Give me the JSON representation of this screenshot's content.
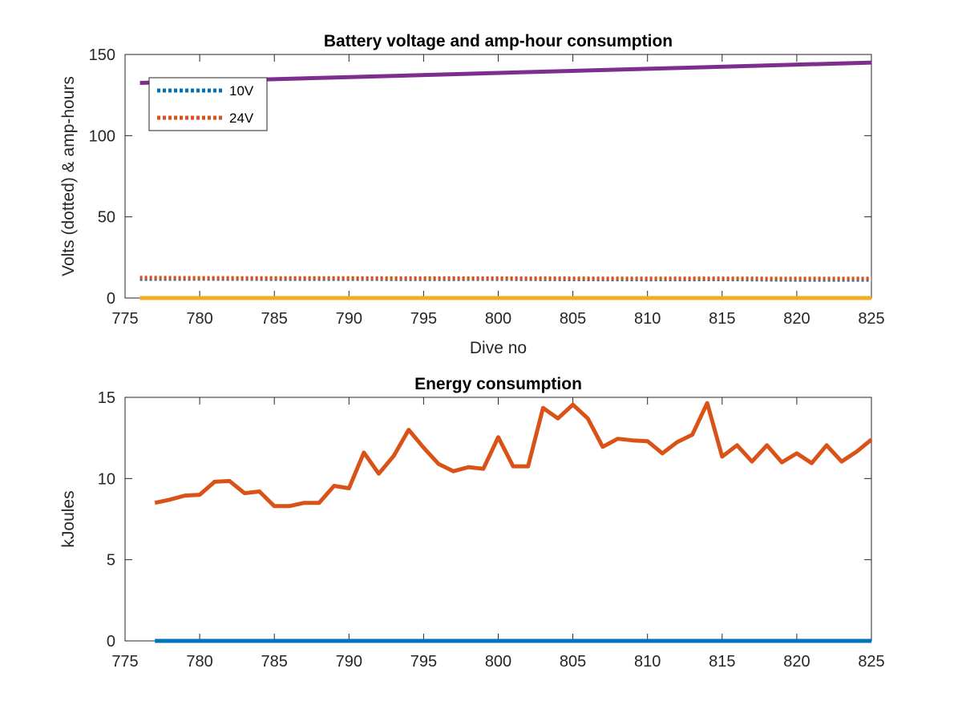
{
  "chart_data": [
    {
      "type": "line",
      "title": "Battery voltage and amp-hour consumption",
      "xlabel": "Dive no",
      "ylabel": "Volts (dotted) & amp-hours",
      "xlim": [
        775,
        825
      ],
      "ylim": [
        0,
        150
      ],
      "xticks": [
        "775",
        "780",
        "785",
        "790",
        "795",
        "800",
        "805",
        "810",
        "815",
        "820",
        "825"
      ],
      "yticks": [
        "0",
        "50",
        "100",
        "150"
      ],
      "grid": false,
      "legend_position": "top-left",
      "series": [
        {
          "name": "10V",
          "style": "dotted",
          "color": "#0072BD",
          "x": [
            776,
            780,
            785,
            790,
            795,
            800,
            805,
            810,
            815,
            820,
            825
          ],
          "y": [
            11.8,
            11.9,
            11.8,
            11.8,
            11.7,
            11.8,
            11.6,
            11.5,
            11.6,
            11.3,
            11.3
          ]
        },
        {
          "name": "24V",
          "style": "dotted",
          "color": "#D95319",
          "x": [
            776,
            780,
            785,
            790,
            795,
            800,
            805,
            810,
            815,
            820,
            825
          ],
          "y": [
            12.5,
            12.3,
            12.2,
            12.2,
            12.1,
            12.1,
            12.0,
            12.0,
            12.0,
            11.9,
            11.9
          ]
        },
        {
          "style": "solid",
          "color": "#EDB120",
          "x": [
            776,
            825
          ],
          "y": [
            0,
            0
          ]
        },
        {
          "style": "solid",
          "color": "#7E2F8E",
          "x": [
            776,
            825
          ],
          "y": [
            132.5,
            145
          ]
        }
      ]
    },
    {
      "type": "line",
      "title": "Energy consumption",
      "xlabel": "",
      "ylabel": "kJoules",
      "xlim": [
        775,
        825
      ],
      "ylim": [
        0,
        15
      ],
      "xticks": [
        "775",
        "780",
        "785",
        "790",
        "795",
        "800",
        "805",
        "810",
        "815",
        "820",
        "825"
      ],
      "yticks": [
        "0",
        "5",
        "10",
        "15"
      ],
      "grid": false,
      "series": [
        {
          "style": "solid",
          "color": "#0072BD",
          "x": [
            777,
            825
          ],
          "y": [
            0,
            0
          ]
        },
        {
          "style": "solid",
          "color": "#D95319",
          "x": [
            777,
            778,
            779,
            780,
            781,
            782,
            783,
            784,
            785,
            786,
            787,
            788,
            789,
            790,
            791,
            792,
            793,
            794,
            795,
            796,
            797,
            798,
            799,
            800,
            801,
            802,
            803,
            804,
            805,
            806,
            807,
            808,
            809,
            810,
            811,
            812,
            813,
            814,
            815,
            816,
            817,
            818,
            819,
            820,
            821,
            822,
            823,
            824,
            825
          ],
          "y": [
            8.5,
            8.7,
            8.95,
            9.0,
            9.8,
            9.85,
            9.1,
            9.2,
            8.3,
            8.3,
            8.5,
            8.5,
            9.55,
            9.4,
            11.6,
            10.3,
            11.4,
            13.0,
            11.9,
            10.9,
            10.45,
            10.7,
            10.6,
            12.55,
            10.75,
            10.75,
            14.35,
            13.7,
            14.55,
            13.7,
            11.95,
            12.45,
            12.35,
            12.3,
            11.55,
            12.25,
            12.7,
            14.65,
            11.35,
            12.05,
            11.05,
            12.05,
            11.0,
            11.55,
            10.95,
            12.05,
            11.05,
            11.65,
            12.4
          ]
        }
      ]
    }
  ]
}
